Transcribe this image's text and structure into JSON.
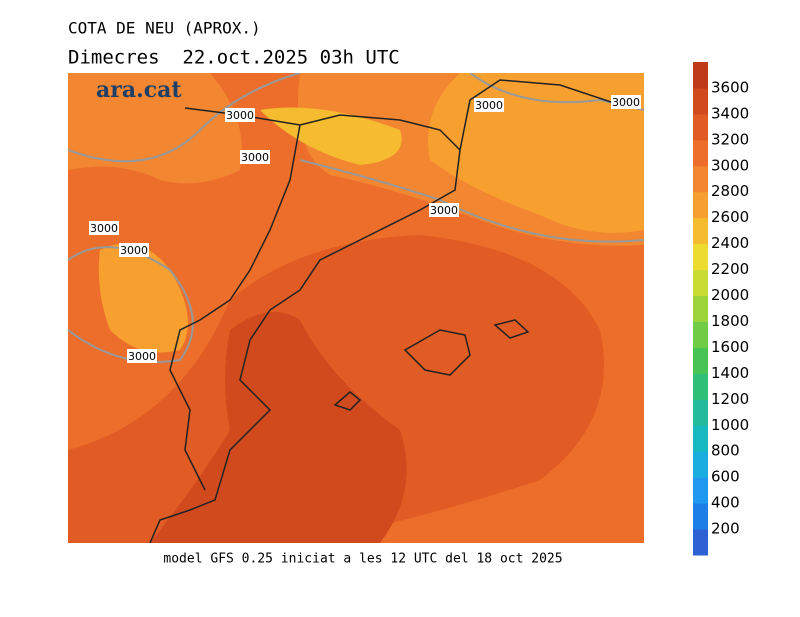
{
  "header": {
    "title": "COTA DE NEU (APROX.)",
    "subtitle": "Dimecres  22.oct.2025 03h UTC"
  },
  "map": {
    "logo": "ara.cat",
    "contour_labels": [
      "3000",
      "3000",
      "3000",
      "3000",
      "3000",
      "3000",
      "3000",
      "3000"
    ]
  },
  "colorbar": {
    "labels": [
      200,
      400,
      600,
      800,
      1000,
      1200,
      1400,
      1600,
      1800,
      2000,
      2200,
      2400,
      2600,
      2800,
      3000,
      3200,
      3400,
      3600
    ],
    "colors": [
      "#2e62d4",
      "#1e7ee8",
      "#1e98f0",
      "#1aaee0",
      "#18b8c0",
      "#22bc9c",
      "#30c078",
      "#48c454",
      "#70cc44",
      "#9cd43a",
      "#c8dc34",
      "#ecdc30",
      "#f6bc30",
      "#f7a030",
      "#f38630",
      "#ec6e2a",
      "#e05c24",
      "#d04a1e",
      "#be3a18"
    ]
  },
  "footer": {
    "text": "model GFS 0.25 iniciat a les 12 UTC del 18 oct 2025"
  }
}
